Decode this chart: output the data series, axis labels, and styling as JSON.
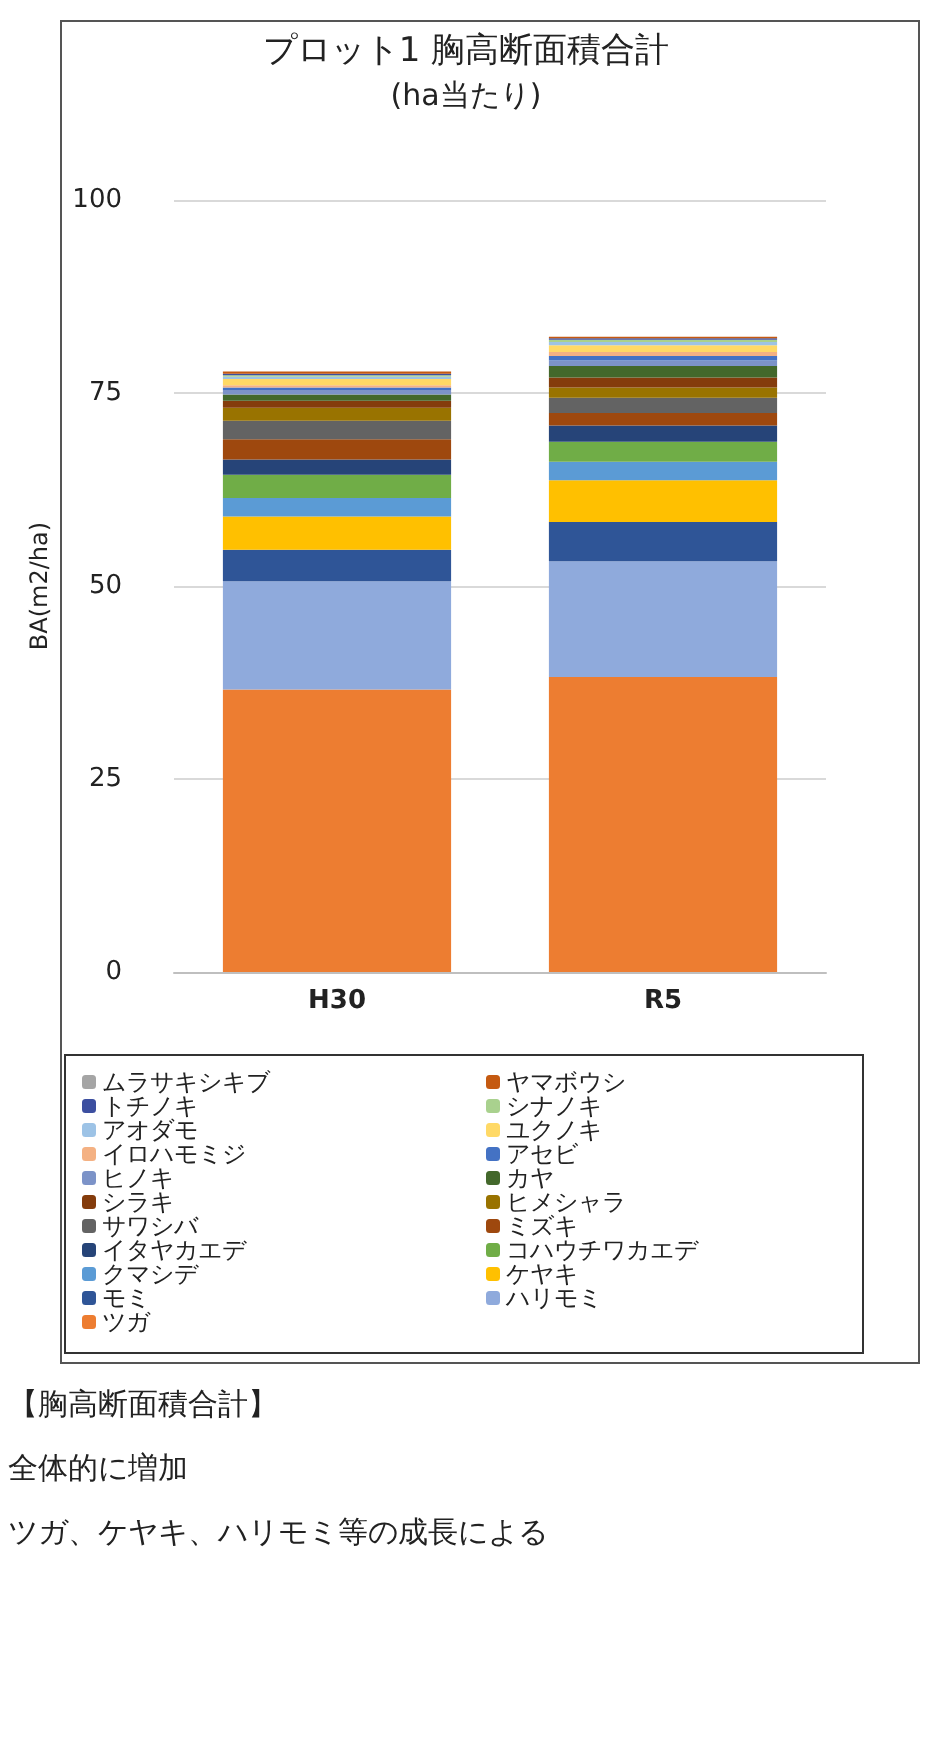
{
  "chart_data": {
    "type": "bar",
    "title": "プロット1 胸高断面積合計",
    "subtitle": "(ha当たり)",
    "ylabel": "BA(m2/ha)",
    "categories": [
      "H30",
      "R5"
    ],
    "stacked": true,
    "ylim": [
      0,
      100
    ],
    "yticks": [
      0,
      25,
      50,
      75,
      100
    ],
    "grid": "y",
    "legend": "bottom",
    "series": [
      {
        "name": "ツガ",
        "color": "#ed7d31",
        "values": [
          36.6,
          38.2
        ]
      },
      {
        "name": "ハリモミ",
        "color": "#8faadc",
        "values": [
          14.0,
          15.0
        ]
      },
      {
        "name": "モミ",
        "color": "#2f5597",
        "values": [
          4.1,
          5.1
        ]
      },
      {
        "name": "ケヤキ",
        "color": "#ffc000",
        "values": [
          4.3,
          5.4
        ]
      },
      {
        "name": "クマシデ",
        "color": "#5b9bd5",
        "values": [
          2.4,
          2.4
        ]
      },
      {
        "name": "コハウチワカエデ",
        "color": "#70ad47",
        "values": [
          3.0,
          2.6
        ]
      },
      {
        "name": "イタヤカエデ",
        "color": "#264478",
        "values": [
          2.0,
          2.1
        ]
      },
      {
        "name": "ミズキ",
        "color": "#9e480e",
        "values": [
          2.6,
          1.6
        ]
      },
      {
        "name": "サワシバ",
        "color": "#636363",
        "values": [
          2.4,
          2.0
        ]
      },
      {
        "name": "ヒメシャラ",
        "color": "#997300",
        "values": [
          1.7,
          1.3
        ]
      },
      {
        "name": "シラキ",
        "color": "#843c0c",
        "values": [
          0.9,
          1.3
        ]
      },
      {
        "name": "カヤ",
        "color": "#43682b",
        "values": [
          0.8,
          1.5
        ]
      },
      {
        "name": "ヒノキ",
        "color": "#7c93c8",
        "values": [
          0.6,
          0.7
        ]
      },
      {
        "name": "アセビ",
        "color": "#4472c4",
        "values": [
          0.3,
          0.6
        ]
      },
      {
        "name": "イロハモミジ",
        "color": "#f4b183",
        "values": [
          0.3,
          0.5
        ]
      },
      {
        "name": "ユクノキ",
        "color": "#ffd966",
        "values": [
          0.8,
          0.9
        ]
      },
      {
        "name": "アオダモ",
        "color": "#9dc3e6",
        "values": [
          0.3,
          0.4
        ]
      },
      {
        "name": "シナノキ",
        "color": "#a9d18e",
        "values": [
          0.2,
          0.3
        ]
      },
      {
        "name": "トチノキ",
        "color": "#3c4fa0",
        "values": [
          0.2,
          0.2
        ]
      },
      {
        "name": "ヤマボウシ",
        "color": "#c55a11",
        "values": [
          0.3,
          0.2
        ]
      },
      {
        "name": "ムラサキシキブ",
        "color": "#a5a5a5",
        "values": [
          null,
          null
        ]
      }
    ],
    "annotations": [
      "【胸高断面積合計】",
      "全体的に増加",
      "ツガ、ケヤキ、ハリモミ等の成長による"
    ]
  }
}
